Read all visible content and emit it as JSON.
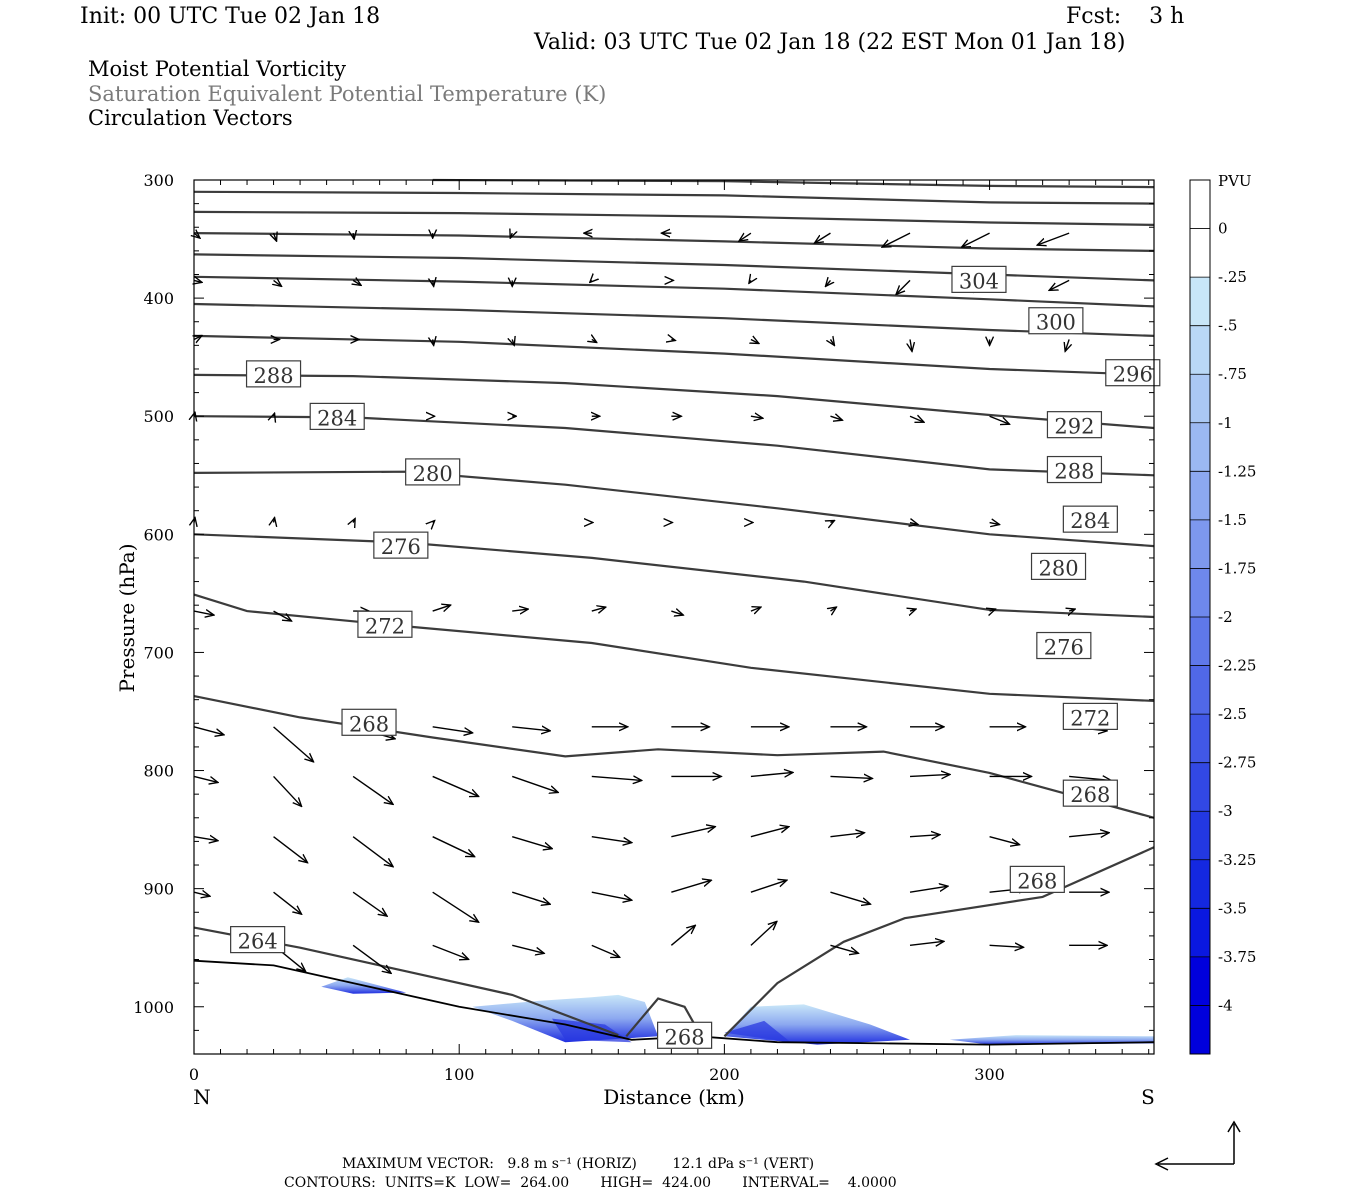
{
  "header": {
    "init": "Init: 00 UTC Tue 02 Jan 18",
    "fcst": "Fcst:    3 h",
    "valid": "Valid: 03 UTC Tue 02 Jan 18 (22 EST Mon 01 Jan 18)"
  },
  "legend_lines": [
    "Moist Potential Vorticity",
    "Saturation Equivalent Potential Temperature (K)",
    "Circulation Vectors"
  ],
  "footer": {
    "vector_line": "MAXIMUM VECTOR:   9.8 m s⁻¹ (HORIZ)        12.1 dPa s⁻¹ (VERT)",
    "contour_line": "CONTOURS:  UNITS=K  LOW=  264.00       HIGH=  424.00       INTERVAL=    4.0000"
  },
  "chart_data": {
    "type": "contour",
    "xlabel": "Distance (km)",
    "ylabel": "Pressure (hPa)",
    "xlim": [
      0,
      362
    ],
    "ylim": [
      1040,
      300
    ],
    "x_ticks": [
      "0",
      "100",
      "200",
      "300"
    ],
    "y_ticks": [
      "300",
      "400",
      "500",
      "600",
      "700",
      "800",
      "900",
      "1000"
    ],
    "x_end_labels": {
      "left": "N",
      "right": "S"
    },
    "colorbar": {
      "unit": "PVU",
      "ticks": [
        "0",
        "-.25",
        "-.5",
        "-.75",
        "-1",
        "-1.25",
        "-1.5",
        "-1.75",
        "-2",
        "-2.25",
        "-2.5",
        "-2.75",
        "-3",
        "-3.25",
        "-3.5",
        "-3.75",
        "-4"
      ],
      "colors": [
        "#ffffff",
        "#ffffff",
        "#c8e6f8",
        "#b9d8f6",
        "#aac8f4",
        "#9bb8f2",
        "#8ca8f0",
        "#7d98ee",
        "#6e88ec",
        "#5f78ea",
        "#5068e8",
        "#4158e6",
        "#3248e4",
        "#2338e2",
        "#1428e0",
        "#0a18df",
        "#0000dd"
      ]
    },
    "contour_labels": [
      {
        "text": "304",
        "x": 296,
        "p": 385
      },
      {
        "text": "300",
        "x": 325,
        "p": 420
      },
      {
        "text": "296",
        "x": 354,
        "p": 464
      },
      {
        "text": "288",
        "x": 30,
        "p": 465
      },
      {
        "text": "284",
        "x": 54,
        "p": 501
      },
      {
        "text": "292",
        "x": 332,
        "p": 508
      },
      {
        "text": "280",
        "x": 90,
        "p": 548
      },
      {
        "text": "288",
        "x": 332,
        "p": 546
      },
      {
        "text": "284",
        "x": 338,
        "p": 588
      },
      {
        "text": "276",
        "x": 78,
        "p": 610
      },
      {
        "text": "280",
        "x": 326,
        "p": 628
      },
      {
        "text": "272",
        "x": 72,
        "p": 677
      },
      {
        "text": "276",
        "x": 328,
        "p": 695
      },
      {
        "text": "272",
        "x": 338,
        "p": 755
      },
      {
        "text": "268",
        "x": 66,
        "p": 760
      },
      {
        "text": "268",
        "x": 338,
        "p": 820
      },
      {
        "text": "268",
        "x": 318,
        "p": 893
      },
      {
        "text": "264",
        "x": 24,
        "p": 944
      },
      {
        "text": "268",
        "x": 185,
        "p": 1025
      }
    ]
  }
}
